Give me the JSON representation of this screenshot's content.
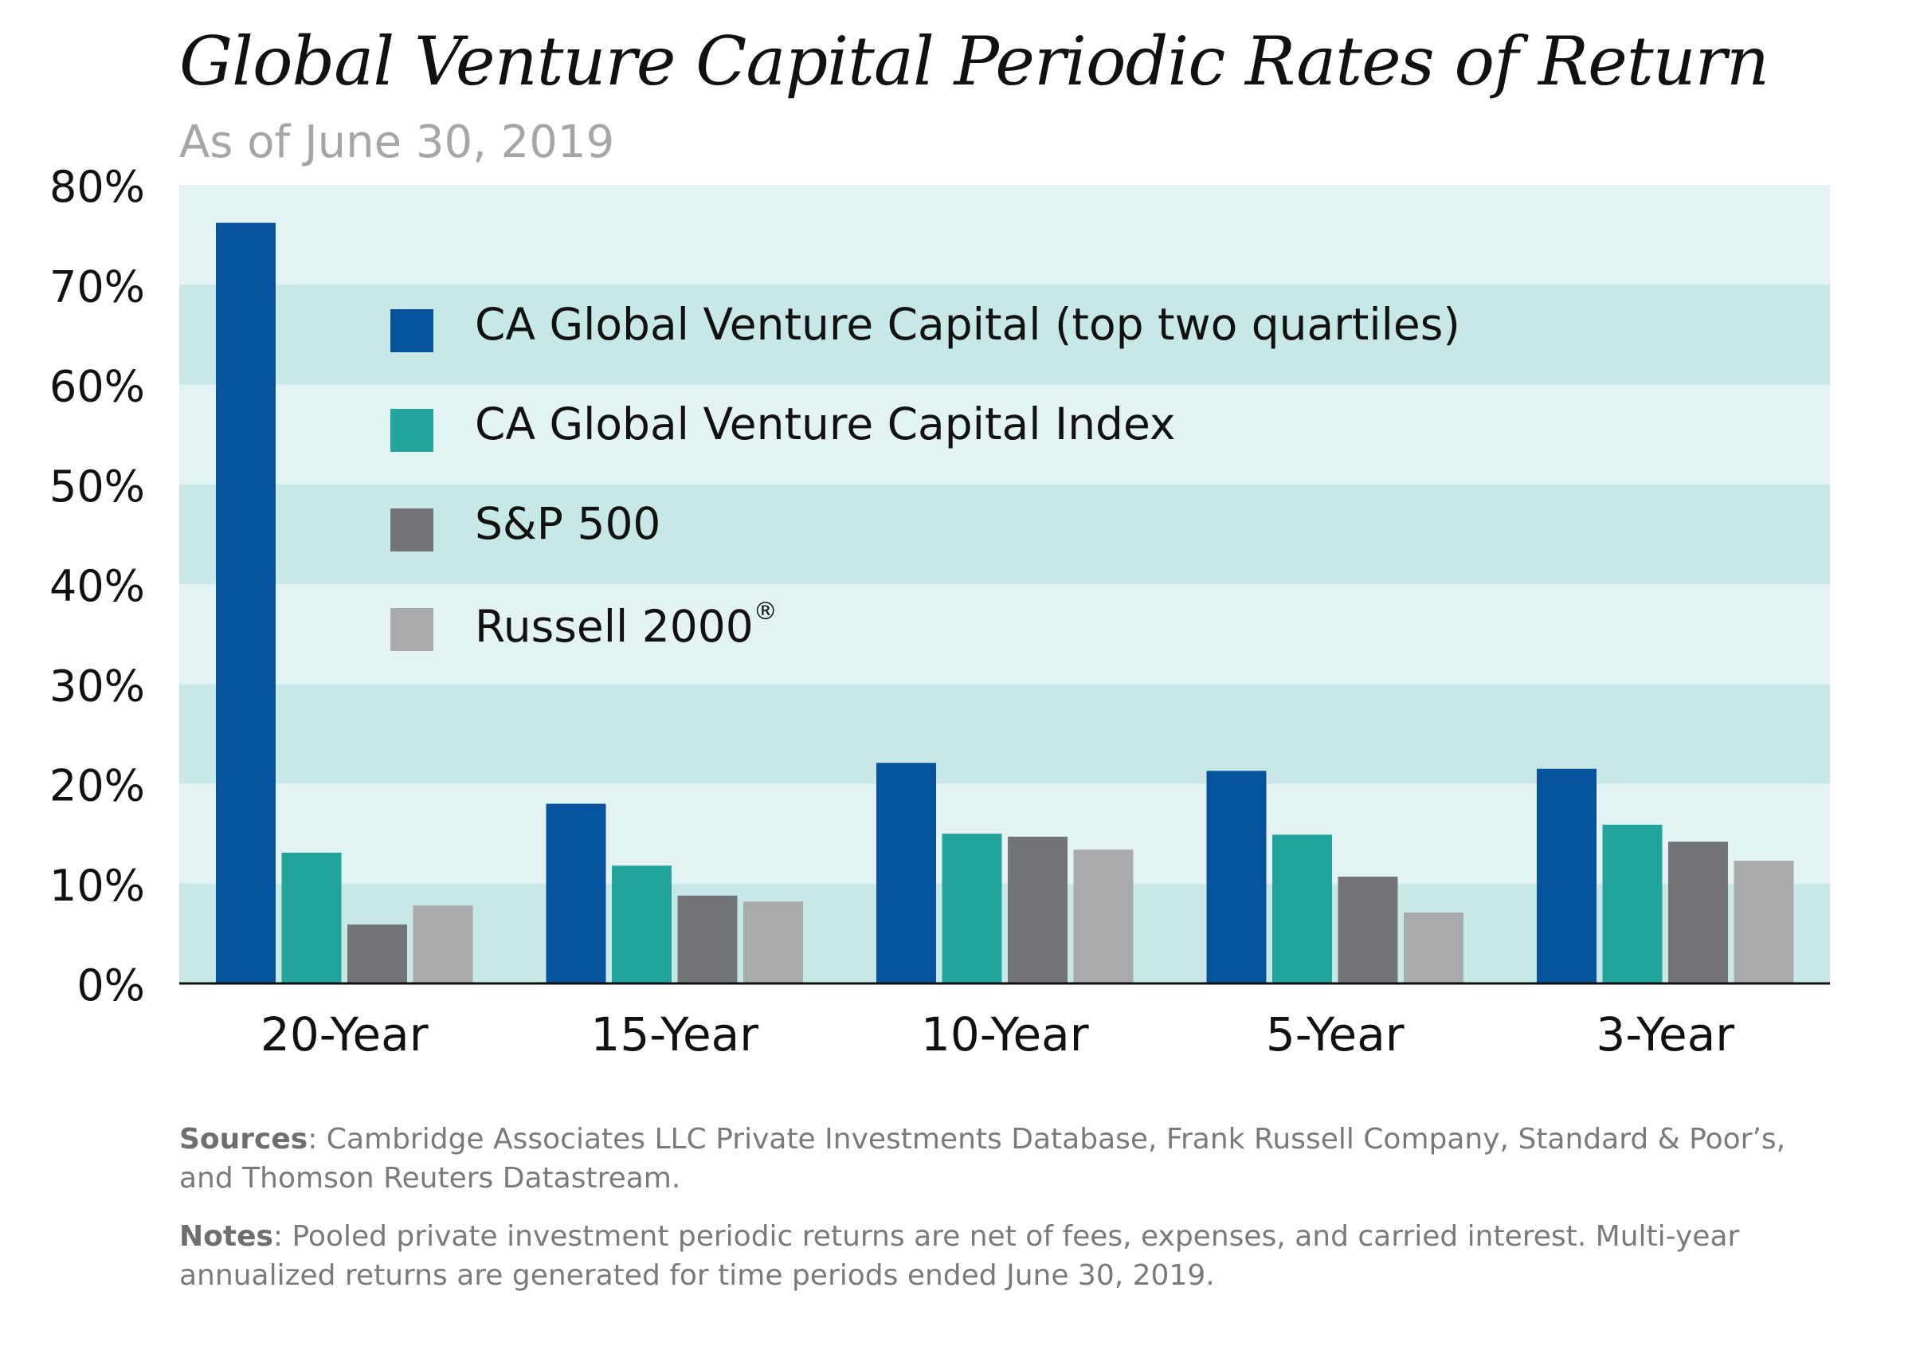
{
  "chart_data": {
    "type": "bar",
    "title": "Global Venture Capital Periodic Rates of Return",
    "subtitle": "As of June 30, 2019",
    "categories": [
      "20-Year",
      "15-Year",
      "10-Year",
      "5-Year",
      "3-Year"
    ],
    "series": [
      {
        "name": "CA Global Venture Capital (top two quartiles)",
        "color": "#07539e",
        "values": [
          76.2,
          18.0,
          22.1,
          21.3,
          21.5
        ]
      },
      {
        "name": "CA Global Venture Capital Index",
        "color": "#22a39c",
        "values": [
          13.1,
          11.8,
          15.0,
          14.9,
          15.9
        ]
      },
      {
        "name": "S&P 500",
        "color": "#727477",
        "values": [
          5.9,
          8.8,
          14.7,
          10.7,
          14.2
        ]
      },
      {
        "name": "Russell 2000",
        "name_suffix": "®",
        "color": "#a8aaac",
        "values": [
          7.8,
          8.2,
          13.4,
          7.1,
          12.3
        ]
      }
    ],
    "ylim": [
      0,
      80
    ],
    "yticks": [
      0,
      10,
      20,
      30,
      40,
      50,
      60,
      70,
      80
    ],
    "ytick_labels": [
      "0%",
      "10%",
      "20%",
      "30%",
      "40%",
      "50%",
      "60%",
      "70%",
      "80%"
    ],
    "xlabel": "",
    "ylabel": "",
    "legend_position": "top-center-inside",
    "background_bands": [
      "#c8e8e7",
      "#e3f3f3"
    ]
  },
  "footnotes": {
    "sources_label": "Sources",
    "sources_text": ": Cambridge Associates LLC Private Investments Database, Frank Russell Company, Standard & Poor’s, and Thomson Reuters Datastream.",
    "notes_label": "Notes",
    "notes_text": ": Pooled private investment periodic returns are net of fees, expenses, and carried interest. Multi-year annualized returns are generated for time periods ended June 30, 2019."
  }
}
